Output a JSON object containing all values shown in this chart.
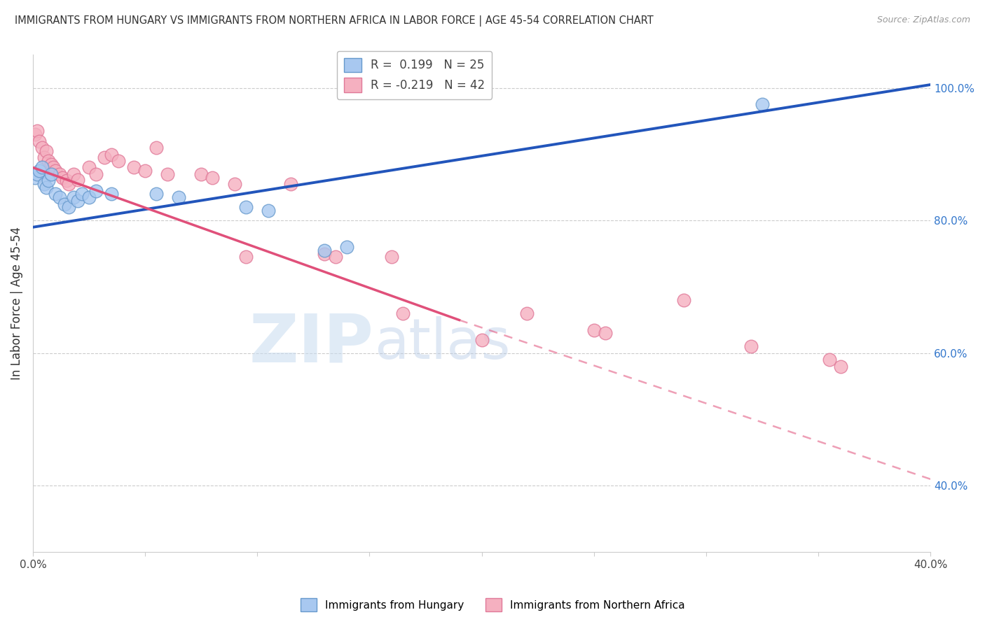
{
  "title": "IMMIGRANTS FROM HUNGARY VS IMMIGRANTS FROM NORTHERN AFRICA IN LABOR FORCE | AGE 45-54 CORRELATION CHART",
  "source": "Source: ZipAtlas.com",
  "ylabel": "In Labor Force | Age 45-54",
  "xlim": [
    0.0,
    0.4
  ],
  "ylim": [
    0.3,
    1.05
  ],
  "xtick_positions": [
    0.0,
    0.05,
    0.1,
    0.15,
    0.2,
    0.25,
    0.3,
    0.35,
    0.4
  ],
  "xticklabels": [
    "0.0%",
    "",
    "",
    "",
    "",
    "",
    "",
    "",
    "40.0%"
  ],
  "ytick_right_positions": [
    1.0,
    0.8,
    0.6,
    0.4
  ],
  "ytick_right_labels": [
    "100.0%",
    "80.0%",
    "60.0%",
    "40.0%"
  ],
  "hungary_color": "#A8C8F0",
  "hungary_edge": "#6699CC",
  "nafr_color": "#F5B0C0",
  "nafr_edge": "#E07898",
  "trend_blue": "#2255BB",
  "trend_pink": "#E0507A",
  "hungary_R": 0.199,
  "hungary_N": 25,
  "nafr_R": -0.219,
  "nafr_N": 42,
  "hungary_trend_x0": 0.0,
  "hungary_trend_y0": 0.79,
  "hungary_trend_x1": 0.4,
  "hungary_trend_y1": 1.005,
  "nafr_trend_x0": 0.0,
  "nafr_trend_y0": 0.88,
  "nafr_trend_x1_solid": 0.19,
  "nafr_trend_y1_solid": 0.65,
  "nafr_trend_x1_dash": 0.4,
  "nafr_trend_y1_dash": 0.41,
  "hungary_scatter_x": [
    0.001,
    0.002,
    0.003,
    0.004,
    0.005,
    0.006,
    0.007,
    0.008,
    0.01,
    0.012,
    0.014,
    0.016,
    0.018,
    0.02,
    0.022,
    0.025,
    0.028,
    0.035,
    0.055,
    0.065,
    0.095,
    0.105,
    0.13,
    0.14,
    0.325
  ],
  "hungary_scatter_y": [
    0.865,
    0.87,
    0.875,
    0.88,
    0.855,
    0.85,
    0.86,
    0.87,
    0.84,
    0.835,
    0.825,
    0.82,
    0.835,
    0.83,
    0.84,
    0.835,
    0.845,
    0.84,
    0.84,
    0.835,
    0.82,
    0.815,
    0.755,
    0.76,
    0.975
  ],
  "nafr_scatter_x": [
    0.001,
    0.002,
    0.003,
    0.004,
    0.005,
    0.006,
    0.007,
    0.008,
    0.009,
    0.01,
    0.012,
    0.013,
    0.015,
    0.016,
    0.018,
    0.02,
    0.025,
    0.028,
    0.032,
    0.035,
    0.038,
    0.045,
    0.05,
    0.055,
    0.06,
    0.075,
    0.08,
    0.09,
    0.095,
    0.115,
    0.13,
    0.135,
    0.16,
    0.165,
    0.2,
    0.22,
    0.25,
    0.255,
    0.29,
    0.32,
    0.355,
    0.36
  ],
  "nafr_scatter_y": [
    0.93,
    0.935,
    0.92,
    0.91,
    0.895,
    0.905,
    0.89,
    0.885,
    0.88,
    0.875,
    0.87,
    0.865,
    0.86,
    0.855,
    0.87,
    0.862,
    0.88,
    0.87,
    0.895,
    0.9,
    0.89,
    0.88,
    0.875,
    0.91,
    0.87,
    0.87,
    0.865,
    0.855,
    0.745,
    0.855,
    0.75,
    0.745,
    0.745,
    0.66,
    0.62,
    0.66,
    0.635,
    0.63,
    0.68,
    0.61,
    0.59,
    0.58
  ],
  "watermark_zip_color": "#C0D8F5",
  "watermark_atlas_color": "#B0C8E8",
  "bg_color": "#FFFFFF",
  "grid_color": "#CCCCCC",
  "border_color": "#CCCCCC"
}
